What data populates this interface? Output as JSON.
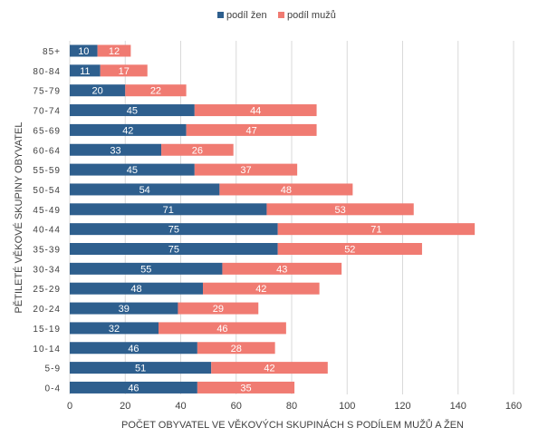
{
  "chart_data": {
    "type": "bar",
    "orientation": "horizontal",
    "stacked": true,
    "categories": [
      "85+",
      "80-84",
      "75-79",
      "70-74",
      "65-69",
      "60-64",
      "55-59",
      "50-54",
      "45-49",
      "40-44",
      "35-39",
      "30-34",
      "25-29",
      "20-24",
      "15-19",
      "10-14",
      "5-9",
      "0-4"
    ],
    "series": [
      {
        "name": "podíl žen",
        "color": "#2E5F8E",
        "values": [
          10,
          11,
          20,
          45,
          42,
          33,
          45,
          54,
          71,
          75,
          75,
          55,
          48,
          39,
          32,
          46,
          51,
          46
        ]
      },
      {
        "name": "podíl mužů",
        "color": "#F07B72",
        "values": [
          12,
          17,
          22,
          44,
          47,
          26,
          37,
          48,
          53,
          71,
          52,
          43,
          42,
          29,
          46,
          28,
          42,
          35
        ]
      }
    ],
    "xlabel": "POČET OBYVATEL VE VĚKOVÝCH SKUPINÁCH S PODÍLEM MUŽŮ A ŽEN",
    "ylabel": "PĚTILETÉ VĚKOVÉ SKUPINY OBYVATEL",
    "xlim": [
      0,
      160
    ],
    "xticks": [
      0,
      20,
      40,
      60,
      80,
      100,
      120,
      140,
      160
    ],
    "grid": true,
    "legend_position": "top"
  }
}
